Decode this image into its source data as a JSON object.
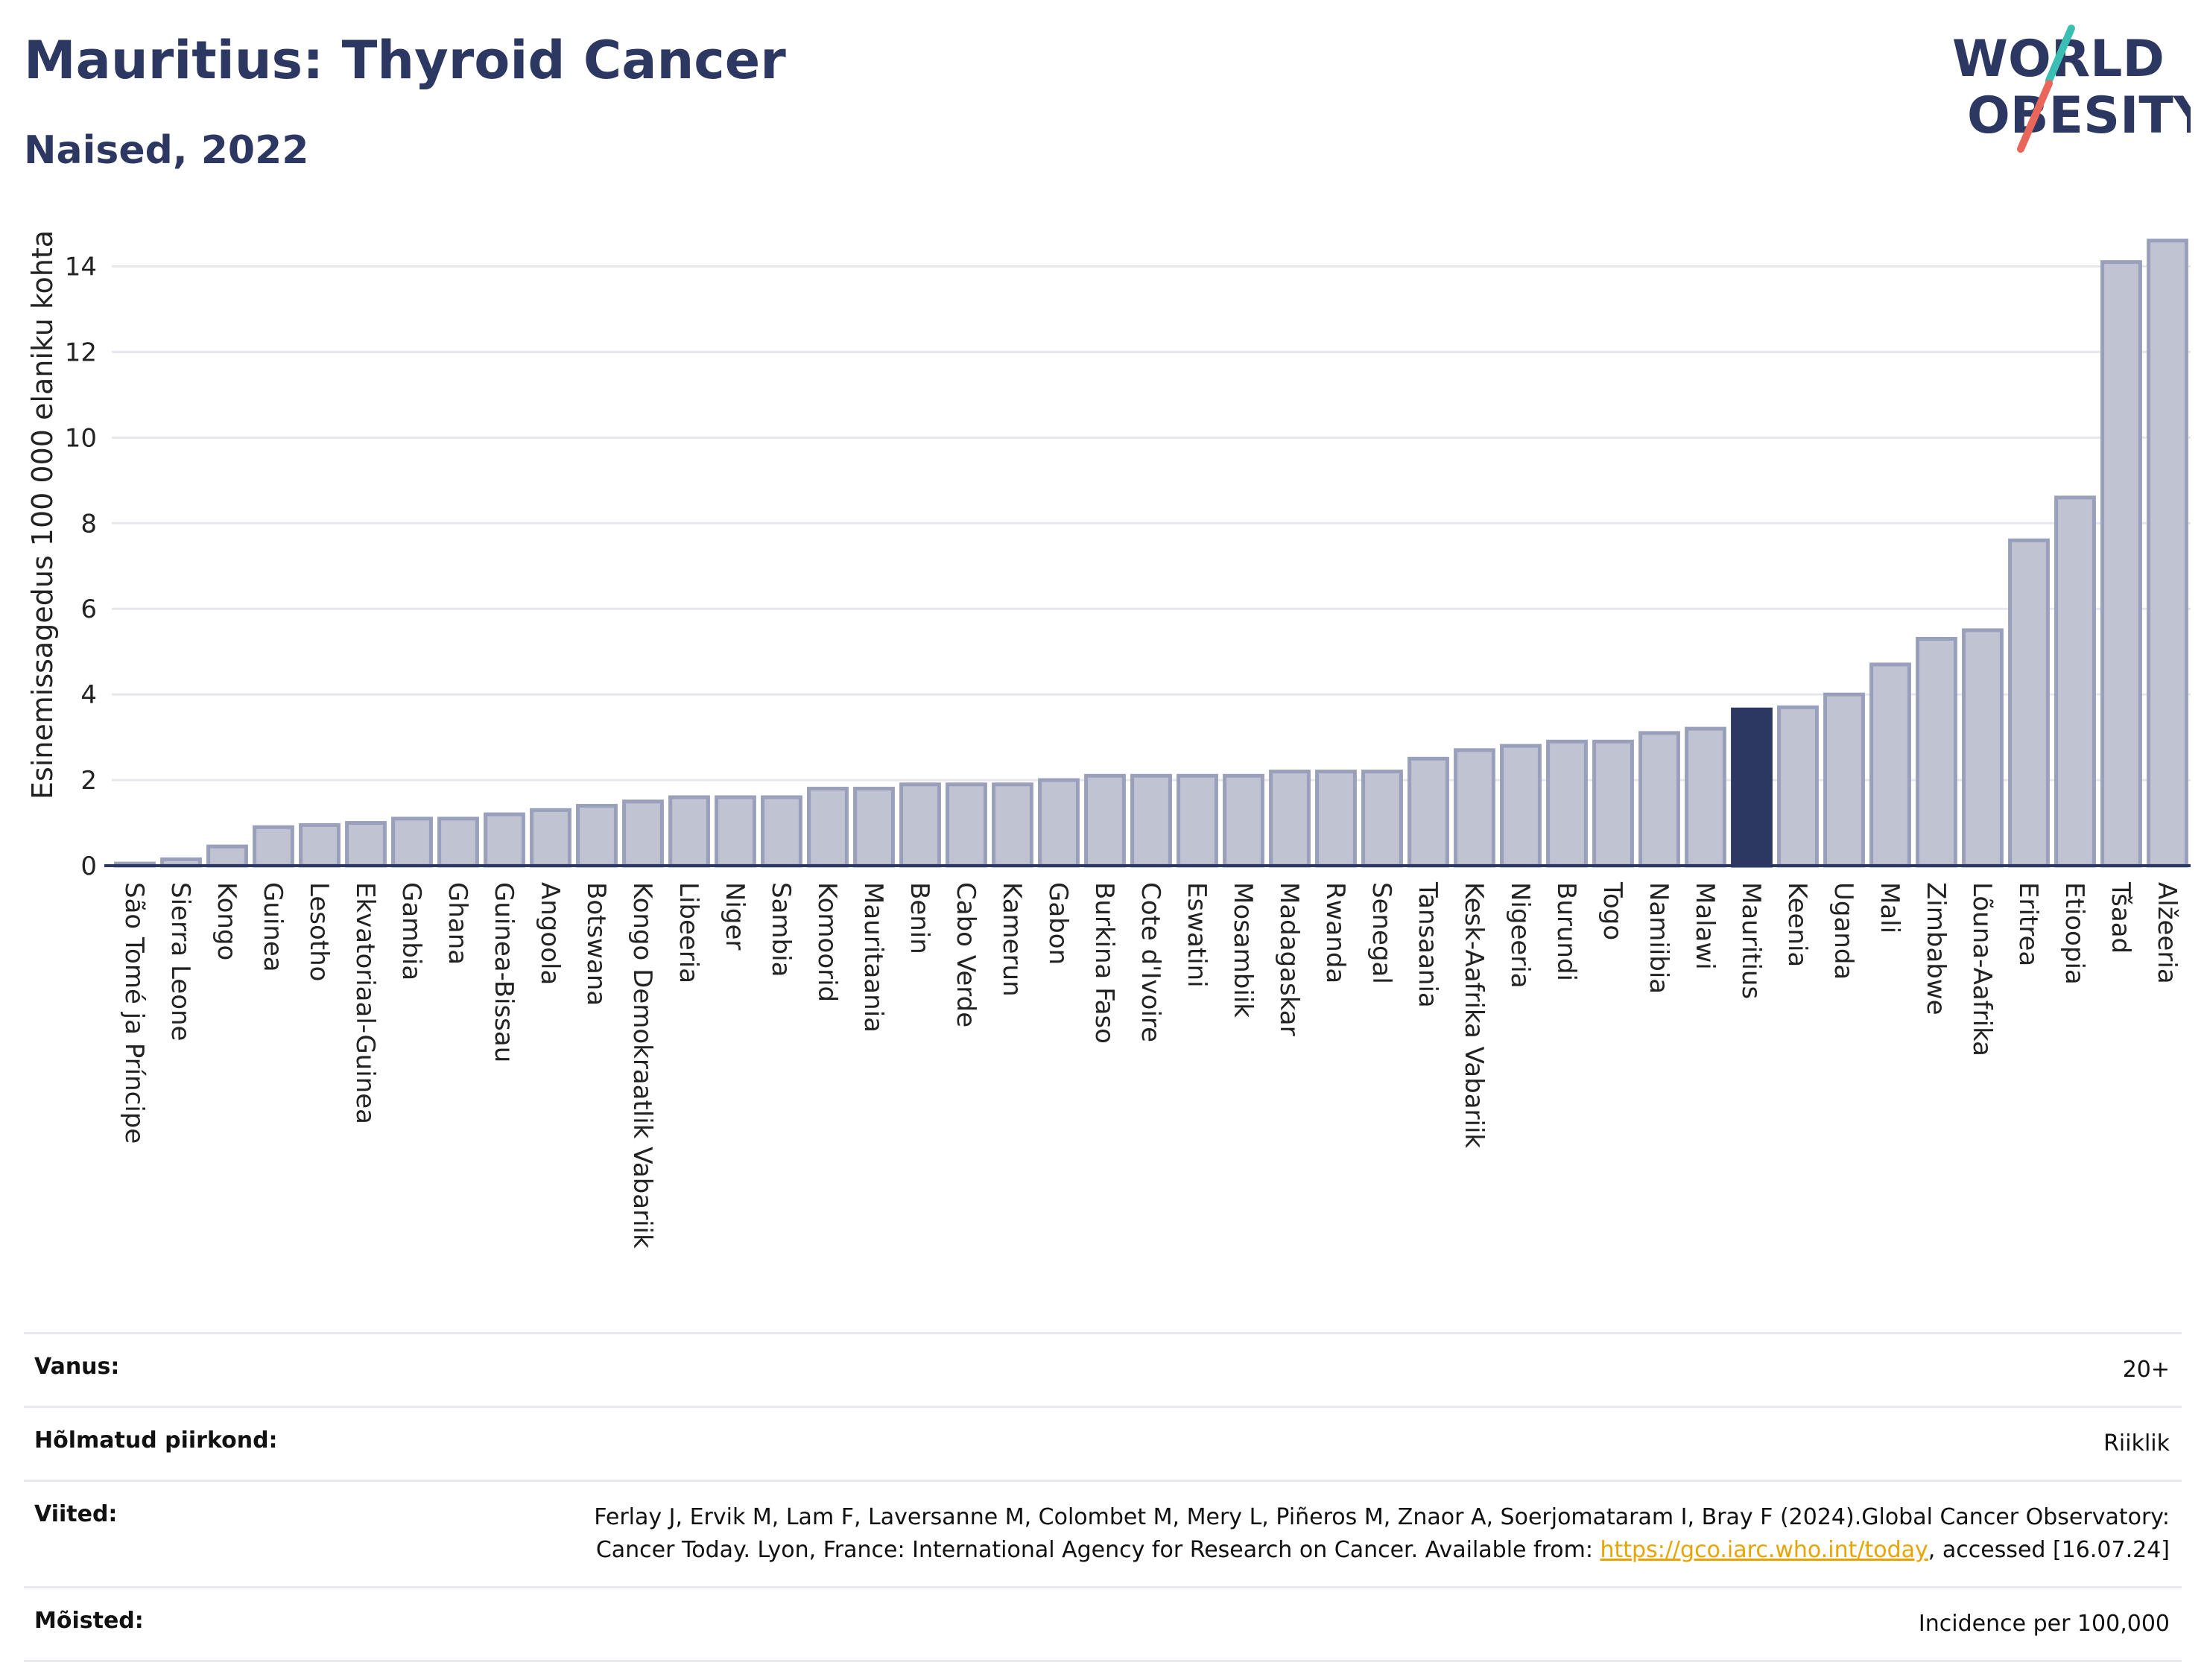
{
  "header": {
    "title": "Mauritius: Thyroid Cancer",
    "subtitle": "Naised, 2022"
  },
  "logo": {
    "line1": "WORLD",
    "line2": "OBESITY",
    "name": "world-obesity-logo"
  },
  "chart_data": {
    "type": "bar",
    "ylabel": "Esinemissagedus 100 000 elaniku kohta",
    "xlabel": "",
    "ylim": [
      0,
      15
    ],
    "yticks": [
      0,
      2,
      4,
      6,
      8,
      10,
      12,
      14
    ],
    "grid": true,
    "highlight": "Mauritius",
    "colors": {
      "bar": "#bfc3d2",
      "bar_edge": "#9aa0bb",
      "highlight": "#2c3861",
      "axis": "#2c3861",
      "grid": "#e6e6ee"
    },
    "categories": [
      "São Tomé ja Príncipe",
      "Sierra Leone",
      "Kongo",
      "Guinea",
      "Lesotho",
      "Ekvatoriaal-Guinea",
      "Gambia",
      "Ghana",
      "Guinea-Bissau",
      "Angoola",
      "Botswana",
      "Kongo Demokraatlik Vabariik",
      "Libeeria",
      "Niger",
      "Sambia",
      "Komoorid",
      "Mauritaania",
      "Benin",
      "Cabo Verde",
      "Kamerun",
      "Gabon",
      "Burkina Faso",
      "Cote d'Ivoire",
      "Eswatini",
      "Mosambiik",
      "Madagaskar",
      "Rwanda",
      "Senegal",
      "Tansaania",
      "Kesk-Aafrika Vabariik",
      "Nigeeria",
      "Burundi",
      "Togo",
      "Namiibia",
      "Malawi",
      "Mauritius",
      "Keenia",
      "Uganda",
      "Mali",
      "Zimbabwe",
      "Lõuna-Aafrika",
      "Eritrea",
      "Etioopia",
      "Tšaad",
      "Alžeeria"
    ],
    "values": [
      0.05,
      0.15,
      0.45,
      0.9,
      0.95,
      1.0,
      1.1,
      1.1,
      1.2,
      1.3,
      1.4,
      1.5,
      1.6,
      1.6,
      1.6,
      1.8,
      1.8,
      1.9,
      1.9,
      1.9,
      2.0,
      2.1,
      2.1,
      2.1,
      2.1,
      2.2,
      2.2,
      2.2,
      2.5,
      2.7,
      2.8,
      2.9,
      2.9,
      3.1,
      3.2,
      3.65,
      3.7,
      4.0,
      4.7,
      5.3,
      5.5,
      7.6,
      8.6,
      14.1,
      14.6
    ]
  },
  "info": {
    "rows": [
      {
        "label": "Vanus:",
        "value": "20+"
      },
      {
        "label": "Hõlmatud piirkond:",
        "value": "Riiklik"
      },
      {
        "label": "Viited:",
        "value_pre": "Ferlay J, Ervik M, Lam F, Laversanne M, Colombet M, Mery L, Piñeros M, Znaor A, Soerjomataram I, Bray F (2024).Global Cancer Observatory: Cancer Today. Lyon, France: International Agency for Research on Cancer. Available from: ",
        "link": "https://gco.iarc.who.int/today",
        "value_post": ", accessed [16.07.24]"
      },
      {
        "label": "Mõisted:",
        "value": "Incidence per 100,000"
      }
    ]
  }
}
